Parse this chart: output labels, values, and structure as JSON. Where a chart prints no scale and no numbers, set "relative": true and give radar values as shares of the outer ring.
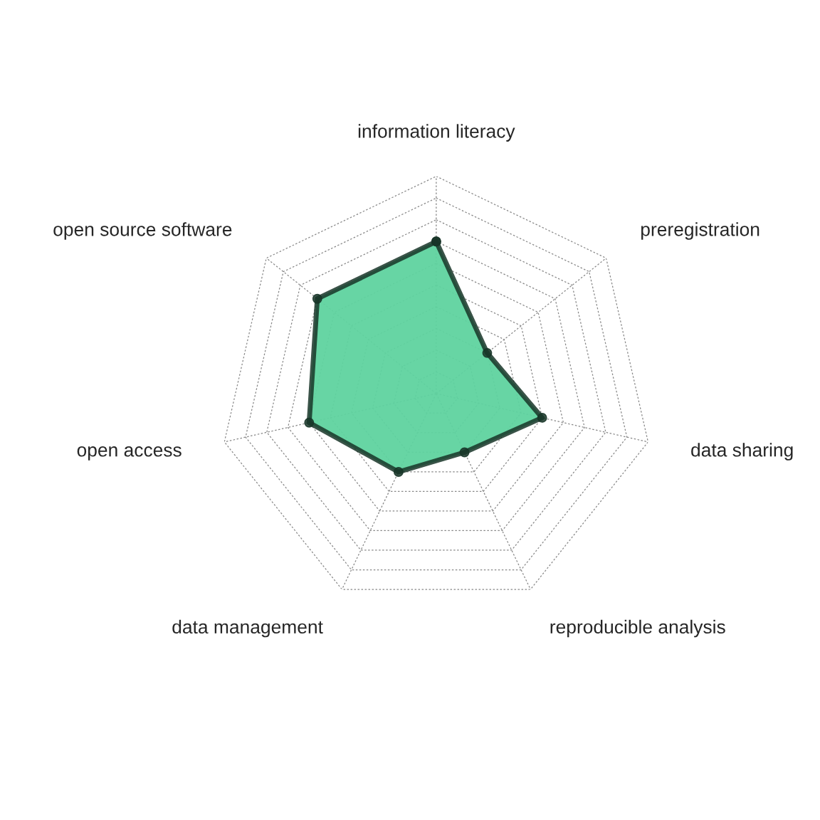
{
  "chart_data": {
    "type": "radar",
    "relative": true,
    "grid": true,
    "marker": "circle",
    "line_style": "solid",
    "categories": [
      "information literacy",
      "preregistration",
      "data sharing",
      "reproducible analysis",
      "data management",
      "open access",
      "open source software"
    ],
    "series": [
      {
        "color": "#5fd3a0",
        "values": [
          0.7,
          0.3,
          0.5,
          0.3,
          0.4,
          0.6,
          0.7
        ]
      }
    ]
  }
}
